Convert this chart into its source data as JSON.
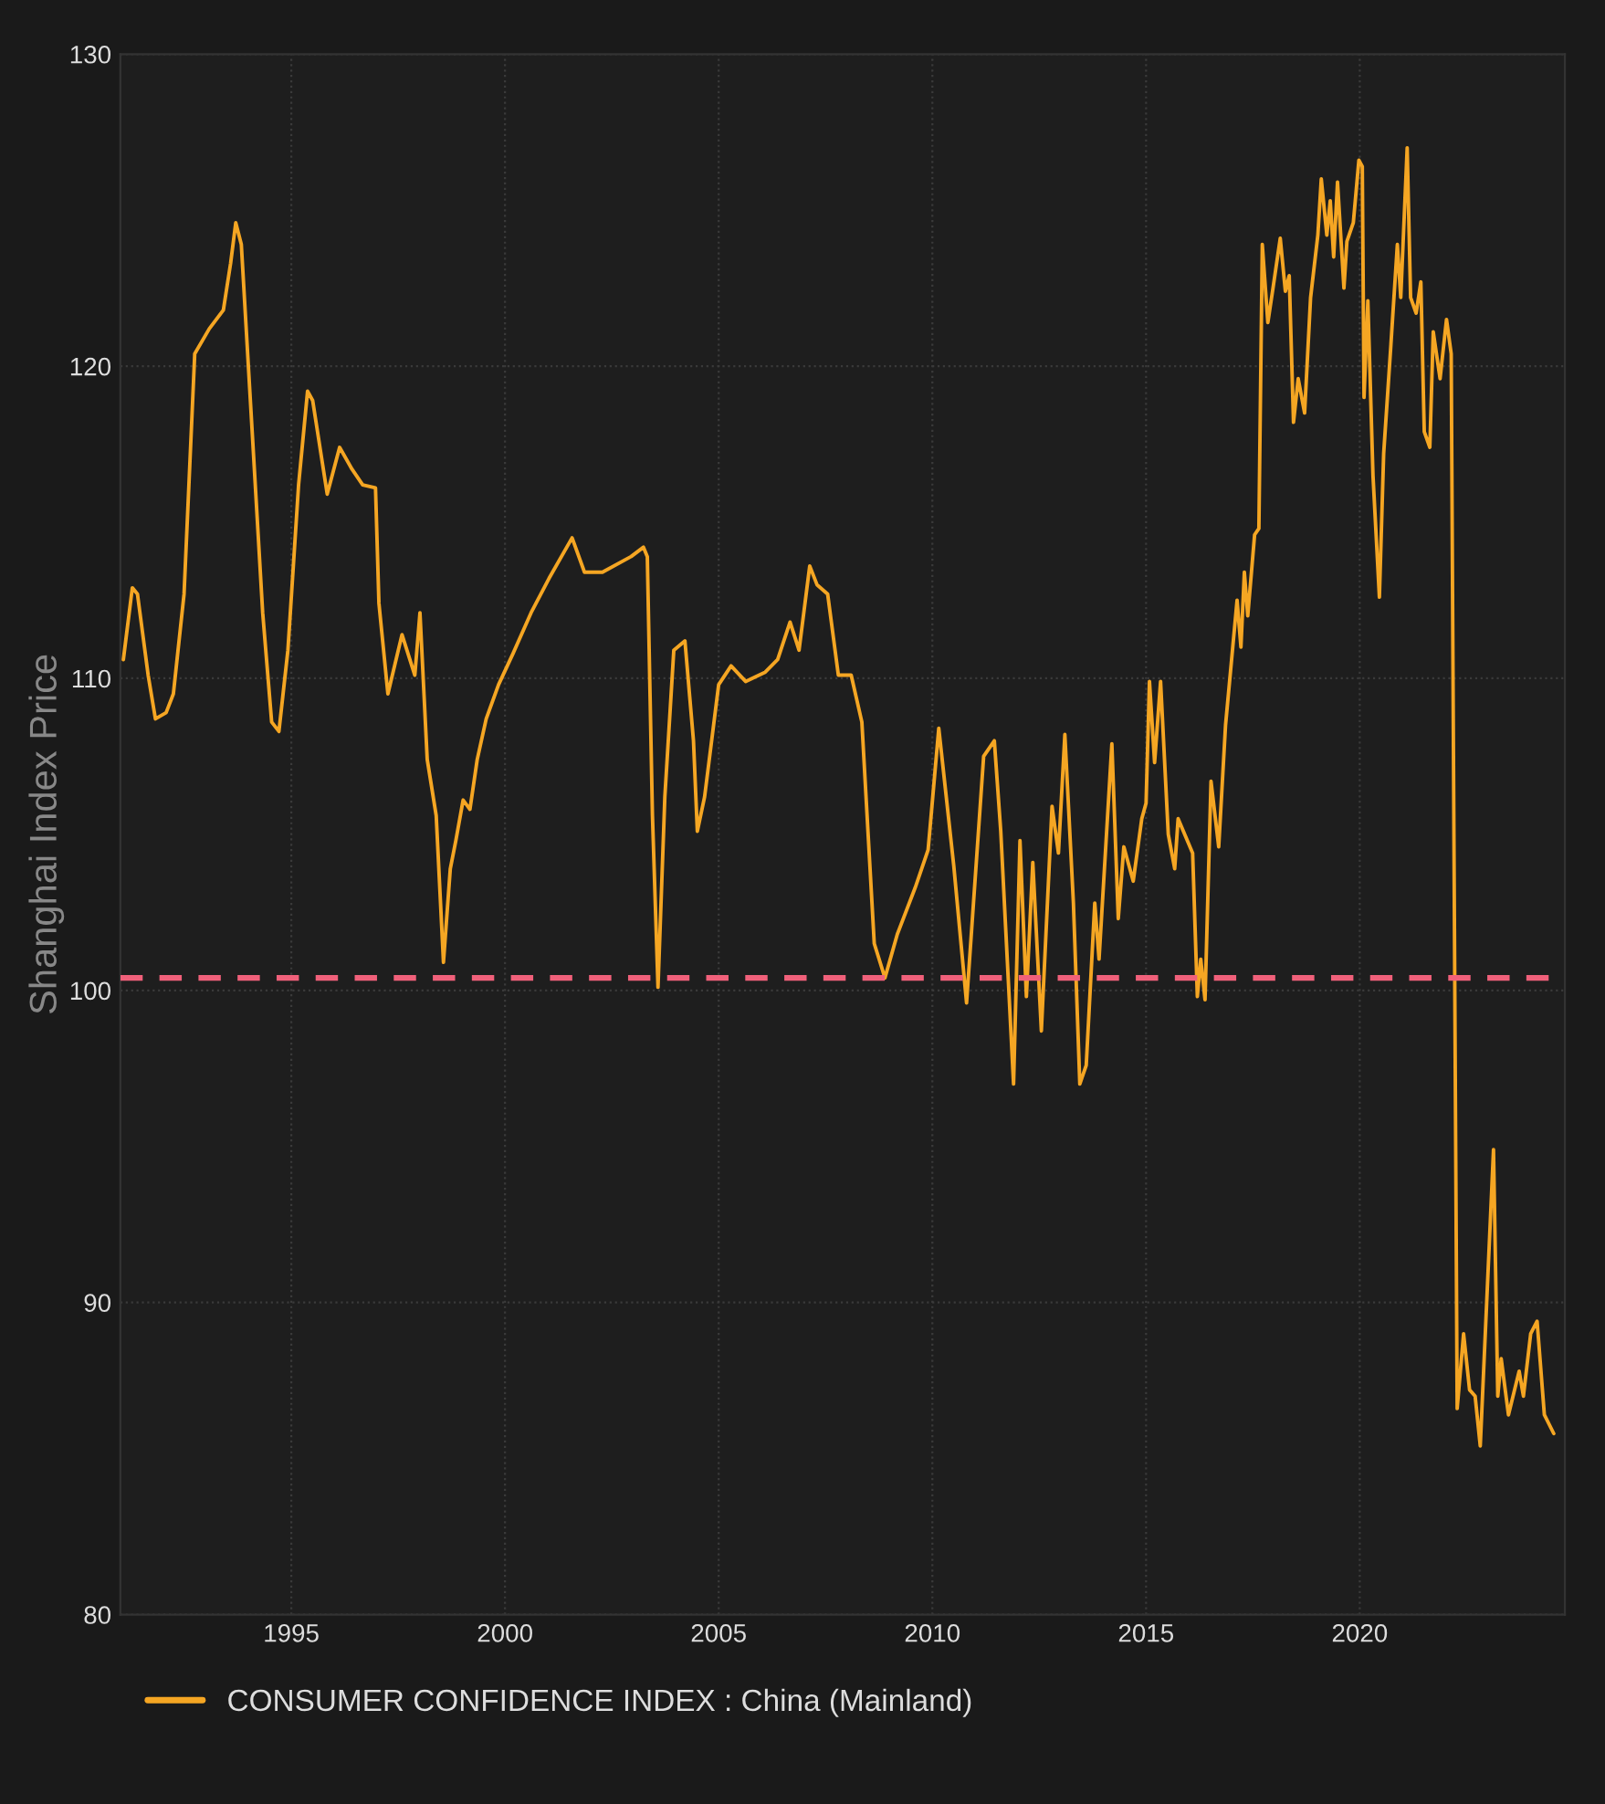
{
  "chart_data": {
    "type": "line",
    "ylabel": "Shanghai Index Price",
    "xlim": [
      1991.0,
      2024.8
    ],
    "xticks": [
      1995,
      2000,
      2005,
      2010,
      2015,
      2020
    ],
    "ylim": [
      80,
      130
    ],
    "yticks": [
      80,
      90,
      100,
      110,
      120,
      130
    ],
    "grid": true,
    "legend": "bottom",
    "line_style": "solid",
    "ref_lines": [
      {
        "axis": "y",
        "value": 100.4,
        "color": "#f0607a",
        "line_style": "dashed"
      }
    ],
    "series": [
      {
        "name": "CONSUMER CONFIDENCE INDEX : China (Mainland)",
        "color": "#f5a623",
        "x": [
          1991.07,
          1991.28,
          1991.4,
          1991.65,
          1991.82,
          1992.07,
          1992.24,
          1992.49,
          1992.74,
          1993.08,
          1993.41,
          1993.58,
          1993.7,
          1993.83,
          1994.08,
          1994.33,
          1994.54,
          1994.71,
          1994.92,
          1995.17,
          1995.38,
          1995.5,
          1995.84,
          1996.13,
          1996.42,
          1996.67,
          1996.97,
          1997.05,
          1997.26,
          1997.59,
          1997.89,
          1998.01,
          1998.18,
          1998.39,
          1998.56,
          1998.72,
          1998.85,
          1999.02,
          1999.18,
          1999.35,
          1999.56,
          1999.85,
          2000.19,
          2000.61,
          2001.03,
          2001.57,
          2001.86,
          2002.28,
          2002.95,
          2003.24,
          2003.33,
          2003.45,
          2003.58,
          2003.74,
          2003.95,
          2004.21,
          2004.41,
          2004.5,
          2004.67,
          2005.0,
          2005.29,
          2005.63,
          2006.09,
          2006.38,
          2006.67,
          2006.88,
          2007.13,
          2007.3,
          2007.55,
          2007.8,
          2008.1,
          2008.35,
          2008.64,
          2008.89,
          2009.18,
          2009.6,
          2009.9,
          2010.15,
          2010.5,
          2010.8,
          2011.2,
          2011.45,
          2011.6,
          2011.9,
          2012.05,
          2012.2,
          2012.35,
          2012.55,
          2012.8,
          2012.95,
          2013.1,
          2013.3,
          2013.45,
          2013.6,
          2013.8,
          2013.9,
          2014.2,
          2014.35,
          2014.48,
          2014.7,
          2014.9,
          2015.0,
          2015.08,
          2015.2,
          2015.34,
          2015.52,
          2015.67,
          2015.75,
          2016.09,
          2016.2,
          2016.28,
          2016.38,
          2016.52,
          2016.7,
          2016.86,
          2017.13,
          2017.22,
          2017.3,
          2017.38,
          2017.54,
          2017.64,
          2017.72,
          2017.85,
          2017.97,
          2018.14,
          2018.26,
          2018.35,
          2018.45,
          2018.56,
          2018.71,
          2018.85,
          2019.02,
          2019.1,
          2019.23,
          2019.31,
          2019.39,
          2019.48,
          2019.63,
          2019.7,
          2019.85,
          2019.98,
          2020.06,
          2020.1,
          2020.19,
          2020.31,
          2020.46,
          2020.56,
          2020.73,
          2020.88,
          2020.96,
          2021.11,
          2021.19,
          2021.32,
          2021.43,
          2021.51,
          2021.64,
          2021.72,
          2021.88,
          2022.03,
          2022.14,
          2022.28,
          2022.43,
          2022.57,
          2022.7,
          2022.82,
          2022.99,
          2023.13,
          2023.23,
          2023.31,
          2023.48,
          2023.73,
          2023.83,
          2024.0,
          2024.15,
          2024.32,
          2024.54
        ],
        "values": [
          110.6,
          112.9,
          112.7,
          110.1,
          108.7,
          108.9,
          109.5,
          112.7,
          120.4,
          121.2,
          121.8,
          123.3,
          124.6,
          123.9,
          118.0,
          112.1,
          108.6,
          108.3,
          110.9,
          116.2,
          119.2,
          118.9,
          115.9,
          117.4,
          116.7,
          116.2,
          116.1,
          112.4,
          109.5,
          111.4,
          110.1,
          112.1,
          107.4,
          105.6,
          100.9,
          103.9,
          104.8,
          106.1,
          105.8,
          107.4,
          108.7,
          109.8,
          110.8,
          112.1,
          113.2,
          114.5,
          113.4,
          113.4,
          113.9,
          114.2,
          113.9,
          105.6,
          100.1,
          106.2,
          110.9,
          111.2,
          108.0,
          105.1,
          106.2,
          109.8,
          110.4,
          109.9,
          110.2,
          110.6,
          111.8,
          110.9,
          113.6,
          113.0,
          112.7,
          110.1,
          110.1,
          108.6,
          101.5,
          100.4,
          101.8,
          103.3,
          104.5,
          108.4,
          104.0,
          99.6,
          107.5,
          108.0,
          105.1,
          97.0,
          104.8,
          99.8,
          104.1,
          98.7,
          105.9,
          104.4,
          108.2,
          102.8,
          97.0,
          97.6,
          102.8,
          101.0,
          107.9,
          102.3,
          104.6,
          103.5,
          105.5,
          106.0,
          109.9,
          107.3,
          109.9,
          105.0,
          103.9,
          105.5,
          104.4,
          99.8,
          101.0,
          99.7,
          106.7,
          104.6,
          108.5,
          112.5,
          111.0,
          113.4,
          112.0,
          114.6,
          114.8,
          123.9,
          121.4,
          122.5,
          124.1,
          122.4,
          122.9,
          118.2,
          119.6,
          118.5,
          122.2,
          124.2,
          126.0,
          124.2,
          125.3,
          123.5,
          125.9,
          122.5,
          124.0,
          124.6,
          126.6,
          126.4,
          119.0,
          122.1,
          116.5,
          112.6,
          117.2,
          120.7,
          123.9,
          122.2,
          127.0,
          122.2,
          121.7,
          122.7,
          117.9,
          117.4,
          121.1,
          119.6,
          121.5,
          120.4,
          86.6,
          89.0,
          87.2,
          87.0,
          85.4,
          90.6,
          94.9,
          87.0,
          88.2,
          86.4,
          87.8,
          87.0,
          89.0,
          89.4,
          86.4,
          85.8
        ]
      }
    ]
  }
}
